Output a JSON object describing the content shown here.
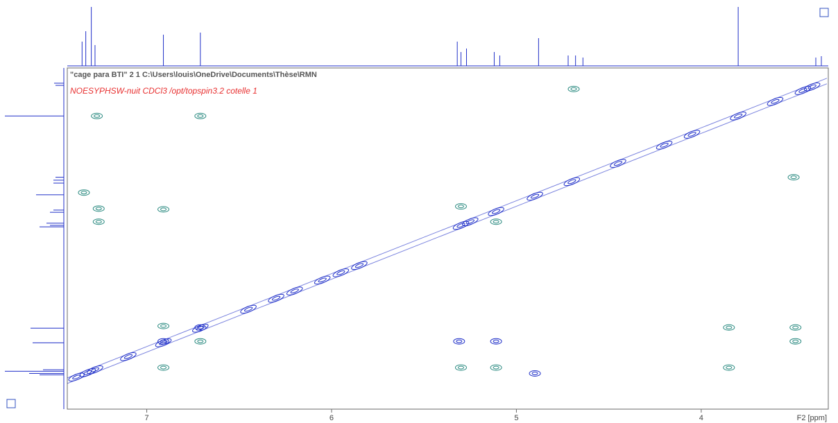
{
  "chart_data": {
    "type": "contour",
    "title": "\"cage para BTI\"  2  1  C:\\Users\\louis\\OneDrive\\Documents\\Thèse\\RMN",
    "subtitle": "NOESYPHSW-nuit CDCl3 /opt/topspin3.2 cotelle 1",
    "x_label": "F2 [ppm]",
    "xlim": [
      7.43,
      3.32
    ],
    "xticks": [
      7,
      6,
      5,
      4
    ],
    "ylim": [
      3.16,
      7.82
    ],
    "diagonal": [
      7.38,
      7.32,
      7.28,
      7.1,
      6.91,
      6.71,
      6.45,
      6.3,
      6.2,
      6.05,
      5.95,
      5.85,
      5.3,
      5.25,
      5.11,
      4.9,
      4.7,
      4.45,
      4.2,
      4.05,
      3.8,
      3.6,
      3.45,
      3.4
    ],
    "diagonal_color": "#1f2fc8",
    "series": [
      {
        "name": "positive",
        "color": "#1f2fc8",
        "x": [
          5.31,
          5.11,
          4.9,
          6.91,
          6.71
        ],
        "values": [
          6.89,
          6.89,
          7.33,
          6.89,
          6.7
        ]
      },
      {
        "name": "negative",
        "color": "#2a8a80",
        "x": [
          7.27,
          6.71,
          4.69,
          3.5,
          7.34,
          7.26,
          7.26,
          6.91,
          5.3,
          5.11,
          6.91,
          6.71,
          3.85,
          3.49,
          3.49,
          5.3,
          5.11,
          3.85,
          6.91
        ],
        "values": [
          3.8,
          3.8,
          3.43,
          4.64,
          4.85,
          5.07,
          5.25,
          5.08,
          5.04,
          5.25,
          6.68,
          6.89,
          6.7,
          6.7,
          6.89,
          7.25,
          7.25,
          7.25,
          7.25
        ]
      }
    ],
    "projection": {
      "x": [
        7.35,
        7.33,
        7.3,
        7.28,
        6.91,
        6.71,
        5.32,
        5.3,
        5.27,
        5.12,
        5.09,
        4.88,
        4.72,
        4.68,
        4.64,
        3.8,
        3.38,
        3.35
      ],
      "values": [
        35,
        50,
        85,
        30,
        45,
        48,
        35,
        20,
        25,
        20,
        15,
        40,
        15,
        15,
        12,
        85,
        12,
        14
      ]
    }
  }
}
